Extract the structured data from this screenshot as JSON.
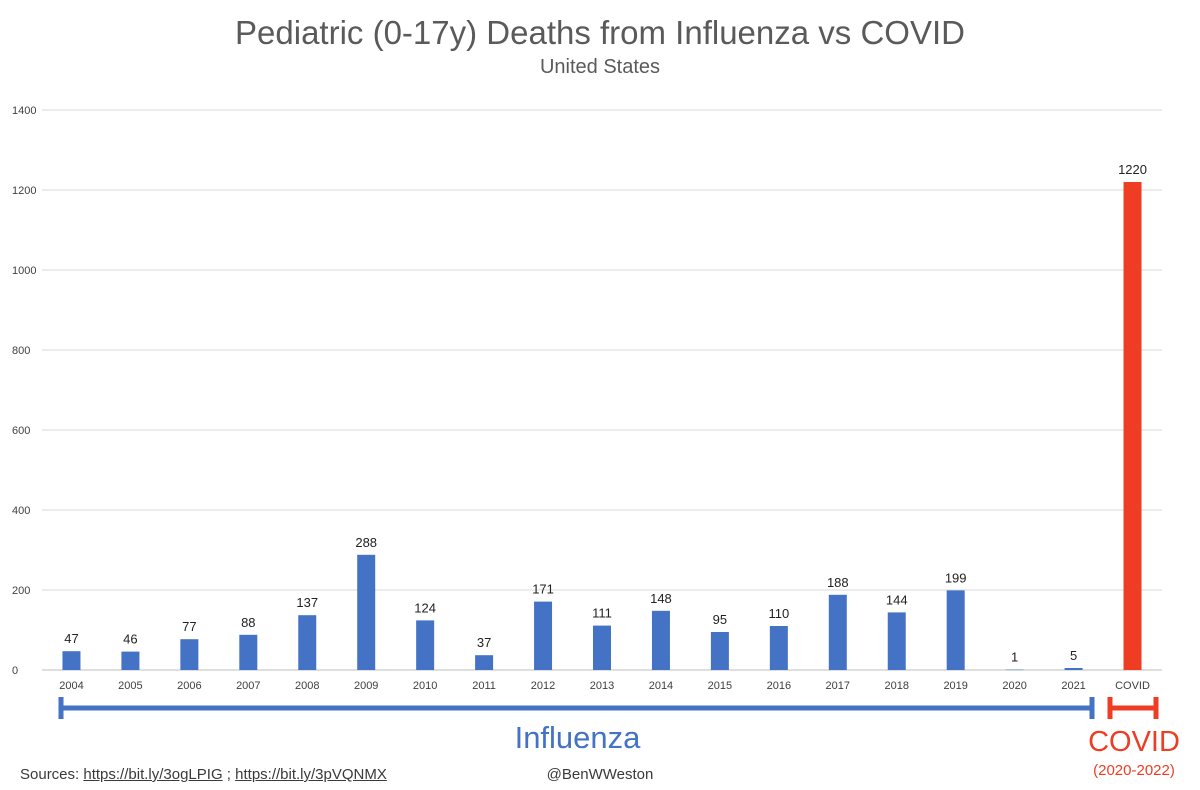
{
  "chart_data": {
    "type": "bar",
    "title": "Pediatric (0-17y) Deaths from Influenza vs COVID",
    "subtitle": "United States",
    "xlabel": "",
    "ylabel": "",
    "ylim": [
      0,
      1400
    ],
    "yticks": [
      "0",
      "200",
      "400",
      "600",
      "800",
      "1000",
      "1200",
      "1400"
    ],
    "grid": true,
    "categories": [
      "2004",
      "2005",
      "2006",
      "2007",
      "2008",
      "2009",
      "2010",
      "2011",
      "2012",
      "2013",
      "2014",
      "2015",
      "2016",
      "2017",
      "2018",
      "2019",
      "2020",
      "2021",
      "COVID"
    ],
    "values": [
      47,
      46,
      77,
      88,
      137,
      288,
      124,
      37,
      171,
      111,
      148,
      95,
      110,
      188,
      144,
      199,
      1,
      5,
      1220
    ],
    "data_labels": [
      "47",
      "46",
      "77",
      "88",
      "137",
      "288",
      "124",
      "37",
      "171",
      "111",
      "148",
      "95",
      "110",
      "188",
      "144",
      "199",
      "1",
      "5",
      "1220"
    ],
    "colors": {
      "influenza": "#4472c4",
      "covid": "#ee3d23"
    }
  },
  "annotations": {
    "influenza_label": "Influenza",
    "covid_label": "COVID",
    "covid_range": "(2020-2022)"
  },
  "footer": {
    "sources_prefix": "Sources: ",
    "link1": "https://bit.ly/3ogLPIG",
    "separator": " ; ",
    "link2": "https://bit.ly/3pVQNMX",
    "credit": "@BenWWeston"
  }
}
